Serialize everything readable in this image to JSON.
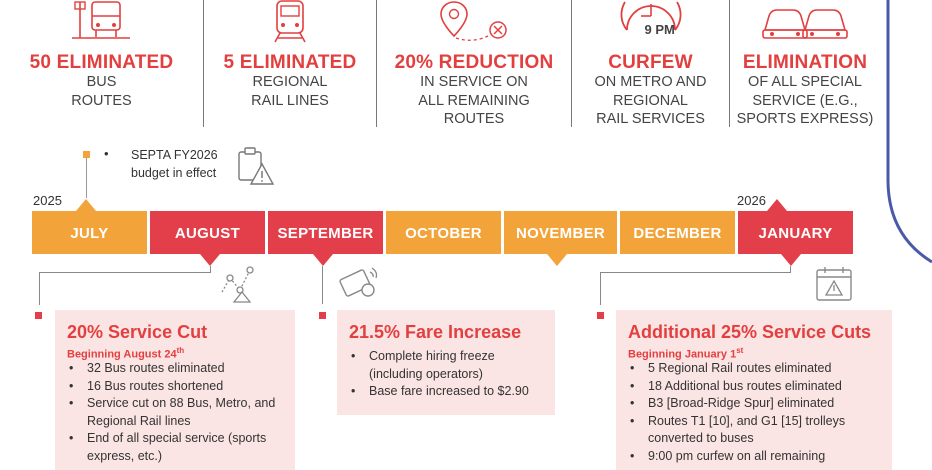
{
  "stats": [
    {
      "icon": "bus-stop-icon",
      "headline": "50 ELIMINATED",
      "sub": "BUS\nROUTES"
    },
    {
      "icon": "train-icon",
      "headline": "5 ELIMINATED",
      "sub": "REGIONAL\nRAIL LINES"
    },
    {
      "icon": "location-pin-x-icon",
      "headline": "20% REDUCTION",
      "sub": "IN SERVICE ON\nALL REMAINING\nROUTES"
    },
    {
      "icon": "clock-icon",
      "clock_label": "9 PM",
      "headline": "CURFEW",
      "sub": "ON METRO AND\nREGIONAL\nRAIL SERVICES"
    },
    {
      "icon": "cars-icon",
      "headline": "ELIMINATION",
      "sub": "OF ALL SPECIAL\nSERVICE (E.G.,\nSPORTS EXPRESS)"
    }
  ],
  "budget_note": {
    "bullet": "•",
    "line1": "SEPTA FY2026",
    "line2": "budget in effect"
  },
  "timeline": {
    "year_start": "2025",
    "year_end": "2026",
    "months": [
      "JULY",
      "AUGUST",
      "SEPTEMBER",
      "OCTOBER",
      "NOVEMBER",
      "DECEMBER",
      "JANUARY"
    ],
    "colors": {
      "orange": "#f2a33a",
      "red": "#e33f4a"
    }
  },
  "cards": [
    {
      "title": "20% Service Cut",
      "since_prefix": "Beginning August 24",
      "since_suffix": "th",
      "items": [
        "32 Bus routes eliminated",
        "16 Bus routes shortened",
        "Service cut on 88 Bus, Metro, and Regional Rail lines",
        "End of all special service (sports express, etc.)"
      ]
    },
    {
      "title": "21.5% Fare Increase",
      "items": [
        "Complete hiring freeze (including operators)",
        "Base fare increased to $2.90"
      ]
    },
    {
      "title": "Additional 25% Service Cuts",
      "since_prefix": "Beginning January 1",
      "since_suffix": "st",
      "items": [
        "5 Regional Rail routes eliminated",
        "18 Additional bus routes eliminated",
        "B3 [Broad-Ridge Spur] eliminated",
        "Routes T1 [10], and G1 [15] trolleys converted to buses",
        "9:00 pm curfew on all remaining"
      ]
    }
  ]
}
